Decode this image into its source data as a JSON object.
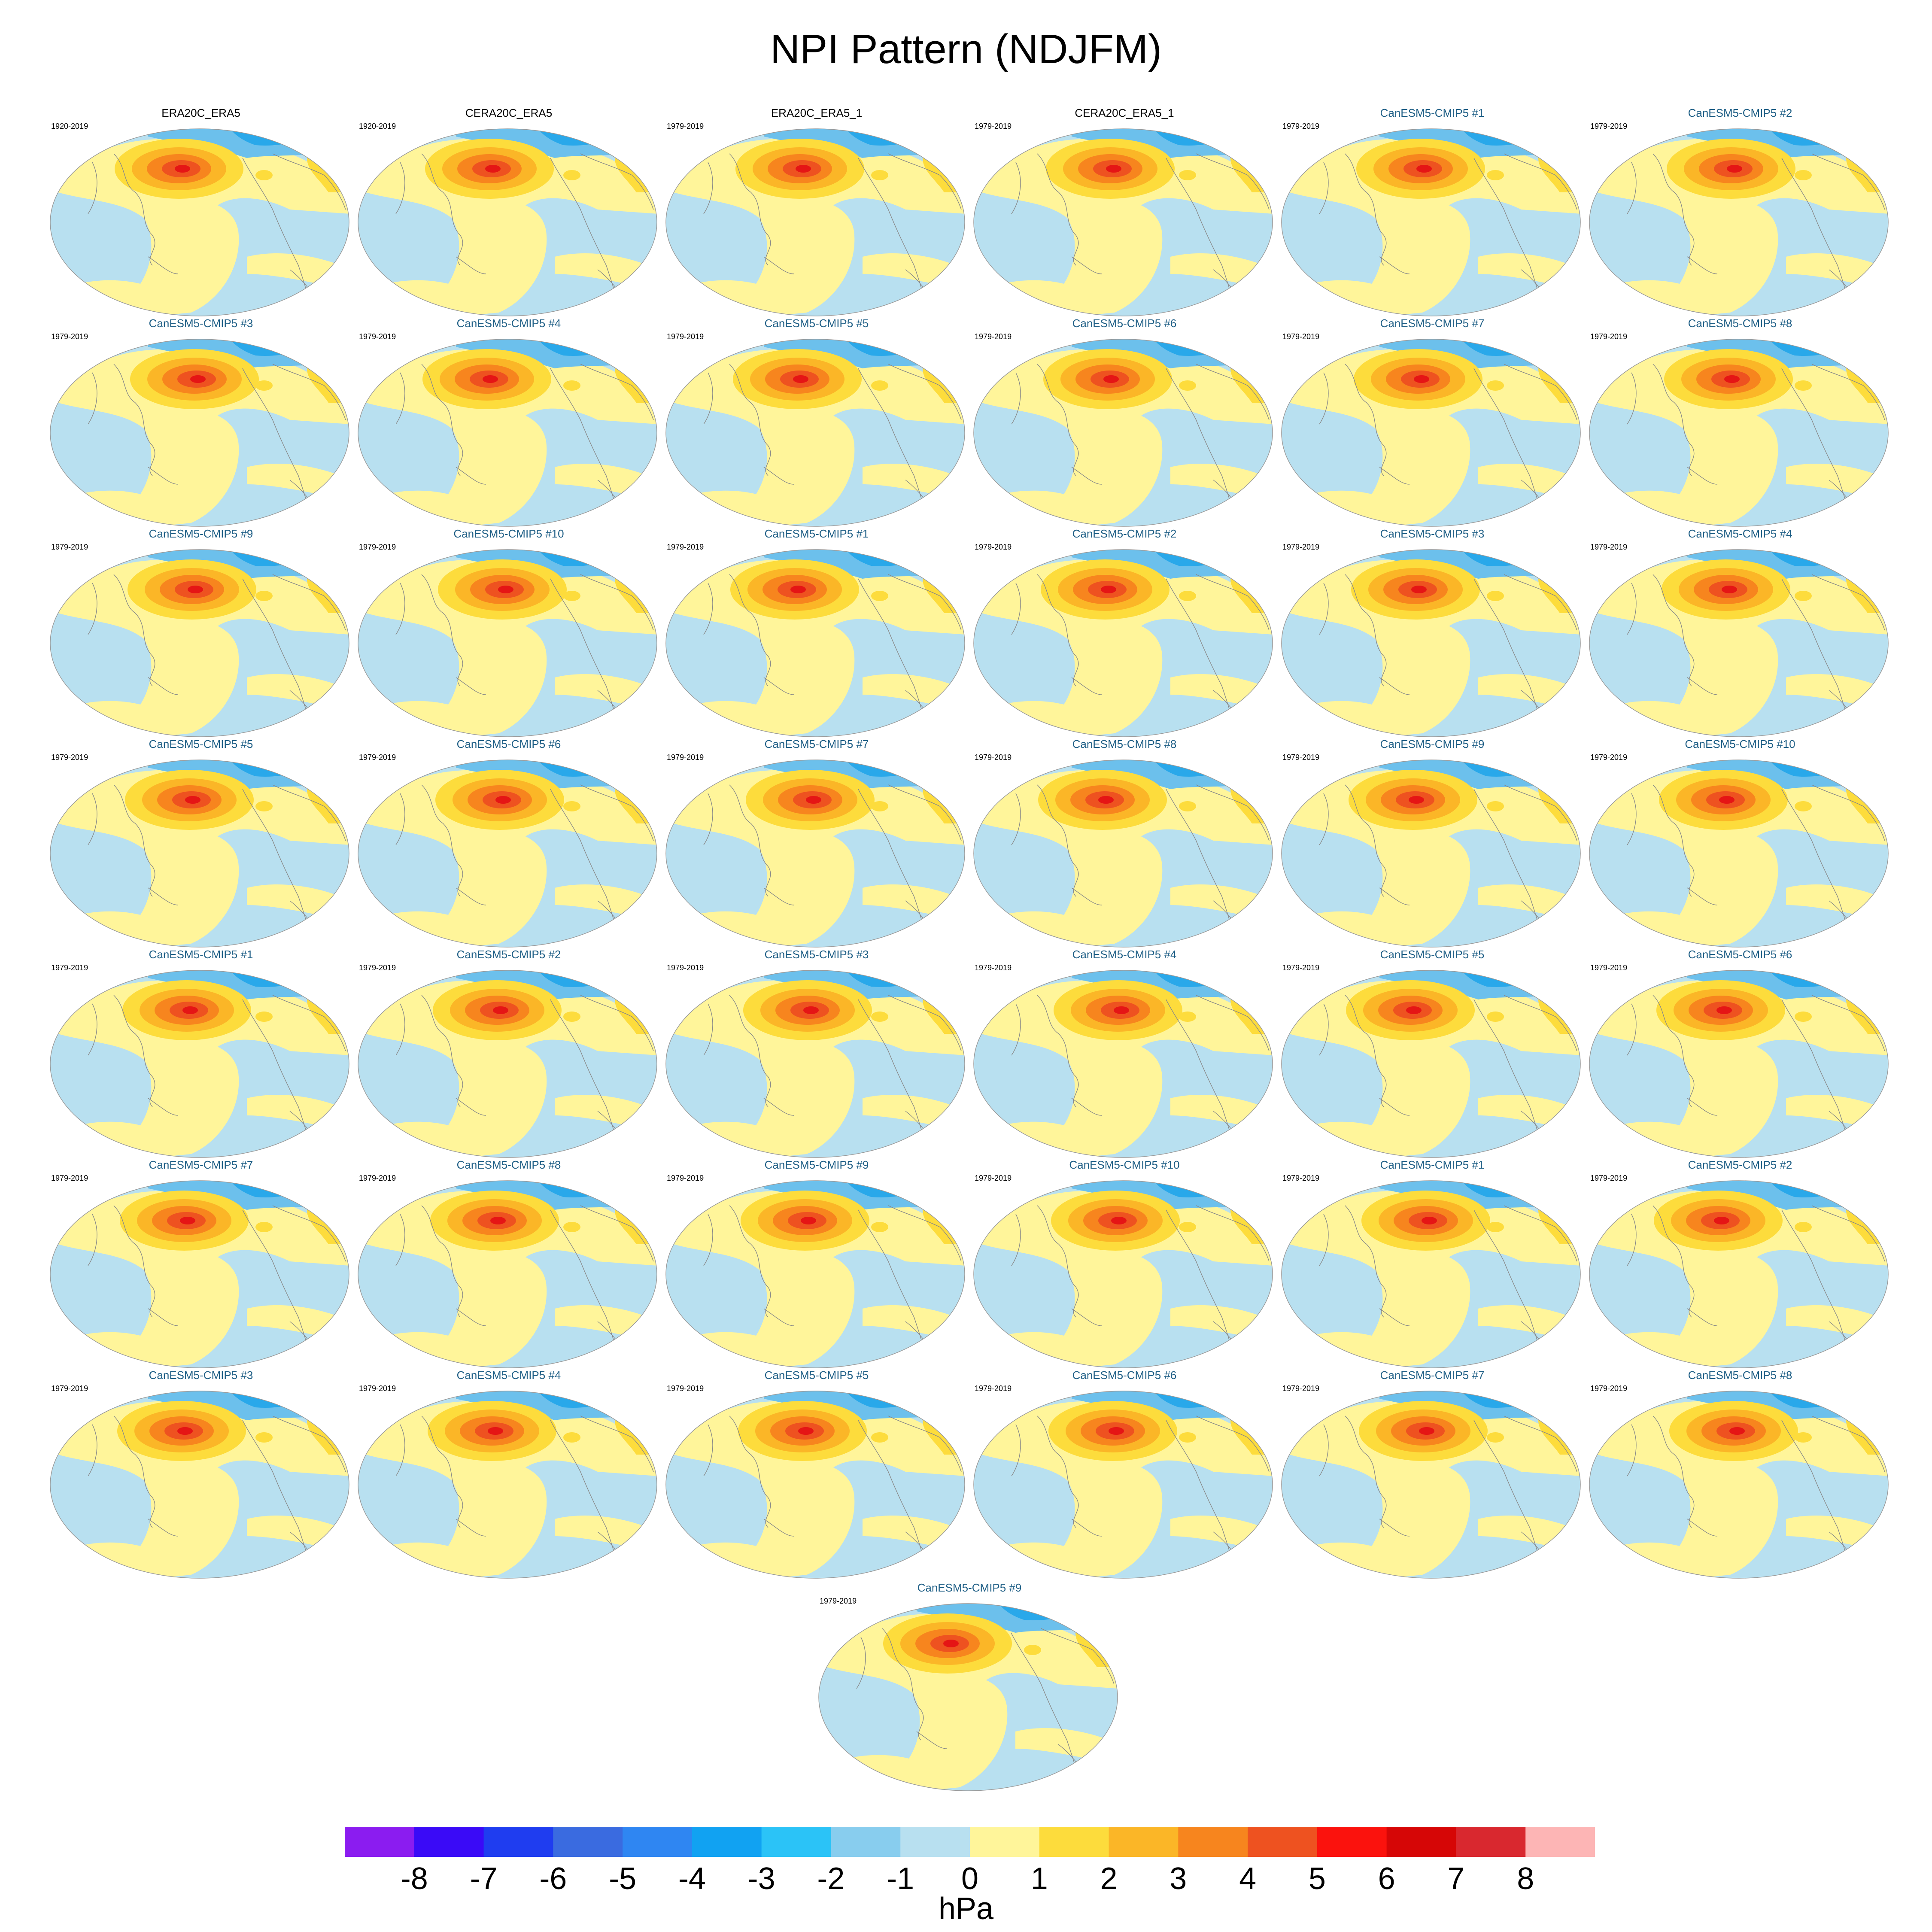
{
  "title": "NPI Pattern (NDJFM)",
  "colors": {
    "ocean_light_blue": "#b8e0f0",
    "ice_blue": "#6cc0ec",
    "polar_blue": "#29a8ea",
    "pale_yellow": "#fff59a",
    "gold": "#fddc3c",
    "orange_light": "#fbb627",
    "orange": "#f7851e",
    "red_orange": "#ee5220",
    "red": "#e51515",
    "coast": "#888888"
  },
  "panels": [
    {
      "title": "ERA20C_ERA5",
      "period": "1920-2019",
      "type": "obs"
    },
    {
      "title": "CERA20C_ERA5",
      "period": "1920-2019",
      "type": "obs"
    },
    {
      "title": "ERA20C_ERA5_1",
      "period": "1979-2019",
      "type": "obs"
    },
    {
      "title": "CERA20C_ERA5_1",
      "period": "1979-2019",
      "type": "obs"
    },
    {
      "title": "CanESM5-CMIP5 #1",
      "period": "1979-2019",
      "type": "model"
    },
    {
      "title": "CanESM5-CMIP5 #2",
      "period": "1979-2019",
      "type": "model"
    },
    {
      "title": "CanESM5-CMIP5 #3",
      "period": "1979-2019",
      "type": "model"
    },
    {
      "title": "CanESM5-CMIP5 #4",
      "period": "1979-2019",
      "type": "model"
    },
    {
      "title": "CanESM5-CMIP5 #5",
      "period": "1979-2019",
      "type": "model"
    },
    {
      "title": "CanESM5-CMIP5 #6",
      "period": "1979-2019",
      "type": "model"
    },
    {
      "title": "CanESM5-CMIP5 #7",
      "period": "1979-2019",
      "type": "model"
    },
    {
      "title": "CanESM5-CMIP5 #8",
      "period": "1979-2019",
      "type": "model"
    },
    {
      "title": "CanESM5-CMIP5 #9",
      "period": "1979-2019",
      "type": "model"
    },
    {
      "title": "CanESM5-CMIP5 #10",
      "period": "1979-2019",
      "type": "model"
    },
    {
      "title": "CanESM5-CMIP5 #1",
      "period": "1979-2019",
      "type": "model"
    },
    {
      "title": "CanESM5-CMIP5 #2",
      "period": "1979-2019",
      "type": "model"
    },
    {
      "title": "CanESM5-CMIP5 #3",
      "period": "1979-2019",
      "type": "model"
    },
    {
      "title": "CanESM5-CMIP5 #4",
      "period": "1979-2019",
      "type": "model"
    },
    {
      "title": "CanESM5-CMIP5 #5",
      "period": "1979-2019",
      "type": "model"
    },
    {
      "title": "CanESM5-CMIP5 #6",
      "period": "1979-2019",
      "type": "model"
    },
    {
      "title": "CanESM5-CMIP5 #7",
      "period": "1979-2019",
      "type": "model"
    },
    {
      "title": "CanESM5-CMIP5 #8",
      "period": "1979-2019",
      "type": "model"
    },
    {
      "title": "CanESM5-CMIP5 #9",
      "period": "1979-2019",
      "type": "model"
    },
    {
      "title": "CanESM5-CMIP5 #10",
      "period": "1979-2019",
      "type": "model"
    },
    {
      "title": "CanESM5-CMIP5 #1",
      "period": "1979-2019",
      "type": "model"
    },
    {
      "title": "CanESM5-CMIP5 #2",
      "period": "1979-2019",
      "type": "model"
    },
    {
      "title": "CanESM5-CMIP5 #3",
      "period": "1979-2019",
      "type": "model"
    },
    {
      "title": "CanESM5-CMIP5 #4",
      "period": "1979-2019",
      "type": "model"
    },
    {
      "title": "CanESM5-CMIP5 #5",
      "period": "1979-2019",
      "type": "model"
    },
    {
      "title": "CanESM5-CMIP5 #6",
      "period": "1979-2019",
      "type": "model"
    },
    {
      "title": "CanESM5-CMIP5 #7",
      "period": "1979-2019",
      "type": "model"
    },
    {
      "title": "CanESM5-CMIP5 #8",
      "period": "1979-2019",
      "type": "model"
    },
    {
      "title": "CanESM5-CMIP5 #9",
      "period": "1979-2019",
      "type": "model"
    },
    {
      "title": "CanESM5-CMIP5 #10",
      "period": "1979-2019",
      "type": "model"
    },
    {
      "title": "CanESM5-CMIP5 #1",
      "period": "1979-2019",
      "type": "model"
    },
    {
      "title": "CanESM5-CMIP5 #2",
      "period": "1979-2019",
      "type": "model"
    },
    {
      "title": "CanESM5-CMIP5 #3",
      "period": "1979-2019",
      "type": "model"
    },
    {
      "title": "CanESM5-CMIP5 #4",
      "period": "1979-2019",
      "type": "model"
    },
    {
      "title": "CanESM5-CMIP5 #5",
      "period": "1979-2019",
      "type": "model"
    },
    {
      "title": "CanESM5-CMIP5 #6",
      "period": "1979-2019",
      "type": "model"
    },
    {
      "title": "CanESM5-CMIP5 #7",
      "period": "1979-2019",
      "type": "model"
    },
    {
      "title": "CanESM5-CMIP5 #8",
      "period": "1979-2019",
      "type": "model"
    },
    {
      "title": "CanESM5-CMIP5 #9",
      "period": "1979-2019",
      "type": "model"
    }
  ],
  "colorbar": {
    "units": "hPa",
    "labels": [
      "-8",
      "-7",
      "-6",
      "-5",
      "-4",
      "-3",
      "-2",
      "-1",
      "0",
      "1",
      "2",
      "3",
      "4",
      "5",
      "6",
      "7",
      "8"
    ],
    "colors": [
      "#8b1cf0",
      "#3a0af7",
      "#1f3df0",
      "#3a6be0",
      "#2f86f2",
      "#11a2f2",
      "#2bc3f7",
      "#88cdee",
      "#b8e0f0",
      "#fff59a",
      "#fddc3c",
      "#fbb627",
      "#f7851e",
      "#ee5220",
      "#fb120d",
      "#d60606",
      "#d9282f",
      "#fdb5b5"
    ]
  }
}
